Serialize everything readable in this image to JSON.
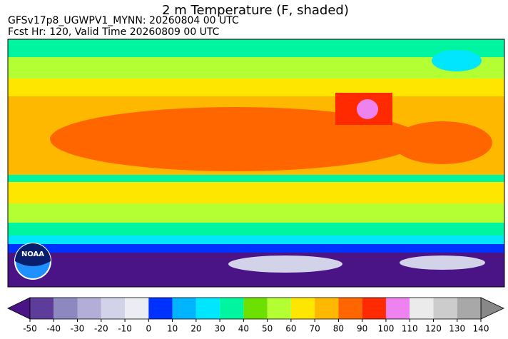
{
  "title": "2 m Temperature (F, shaded)",
  "subtitle_lines": [
    "GFSv17p8_UGWPV1_MYNN: 20260804 00 UTC",
    "Fcst Hr: 120, Valid Time 20260809 00 UTC"
  ],
  "logo": "NOAA",
  "colorbar": {
    "ticks": [
      -50,
      -40,
      -30,
      -20,
      -10,
      0,
      10,
      20,
      30,
      40,
      50,
      60,
      70,
      80,
      90,
      100,
      110,
      120,
      130,
      140
    ],
    "colors": [
      "#5e3c99",
      "#8e88c0",
      "#b2aed8",
      "#d2d2e8",
      "#ececf4",
      "#0032ff",
      "#00b4ff",
      "#00e6ff",
      "#00f5a0",
      "#6ee000",
      "#b4ff34",
      "#ffe600",
      "#ffb800",
      "#ff6600",
      "#ff2a00",
      "#ee82ee",
      "#ebebeb",
      "#cccccc",
      "#a8a8a8"
    ],
    "under_color": "#4a1486",
    "over_color": "#888888"
  }
}
